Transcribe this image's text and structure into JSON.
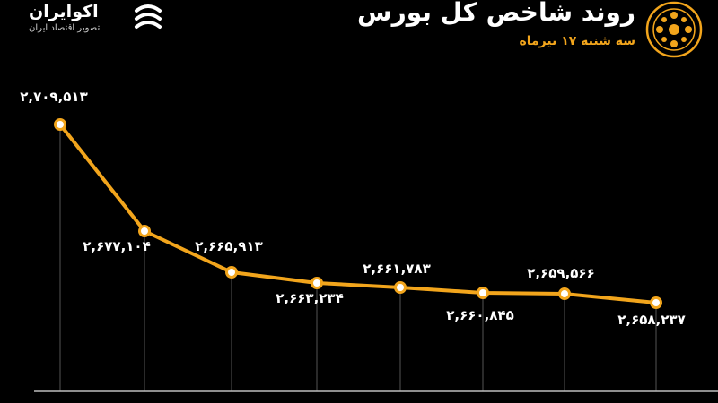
{
  "header": {
    "title": "روند شاخص کل بورس",
    "subtitle": "سه شنبه ۱۷ تیرماه"
  },
  "brand": {
    "name": "اکوایران",
    "tagline": "تصویر اقتصاد ایران"
  },
  "colors": {
    "background": "#000000",
    "line": "#f2a51c",
    "label": "#ffffff",
    "subtitle": "#f2a51c",
    "dropline": "#555555"
  },
  "chart_data": {
    "type": "line",
    "title": "روند شاخص کل بورس",
    "subtitle": "سه شنبه ۱۷ تیرماه",
    "grid": false,
    "x": [
      1,
      2,
      3,
      4,
      5,
      6,
      7,
      8
    ],
    "series": [
      {
        "values": [
          2709513,
          2677104,
          2665913,
          2663234,
          2661783,
          2660845,
          2659566,
          2658237
        ],
        "labels": [
          "۲,۷۰۹,۵۱۳",
          "۲,۶۷۷,۱۰۴",
          "۲,۶۶۵,۹۱۳",
          "۲,۶۶۳,۲۳۴",
          "۲,۶۶۱,۷۸۳",
          "۲,۶۶۰,۸۴۵",
          "۲,۶۵۹,۵۶۶",
          "۲,۶۵۸,۲۳۷"
        ]
      }
    ]
  }
}
